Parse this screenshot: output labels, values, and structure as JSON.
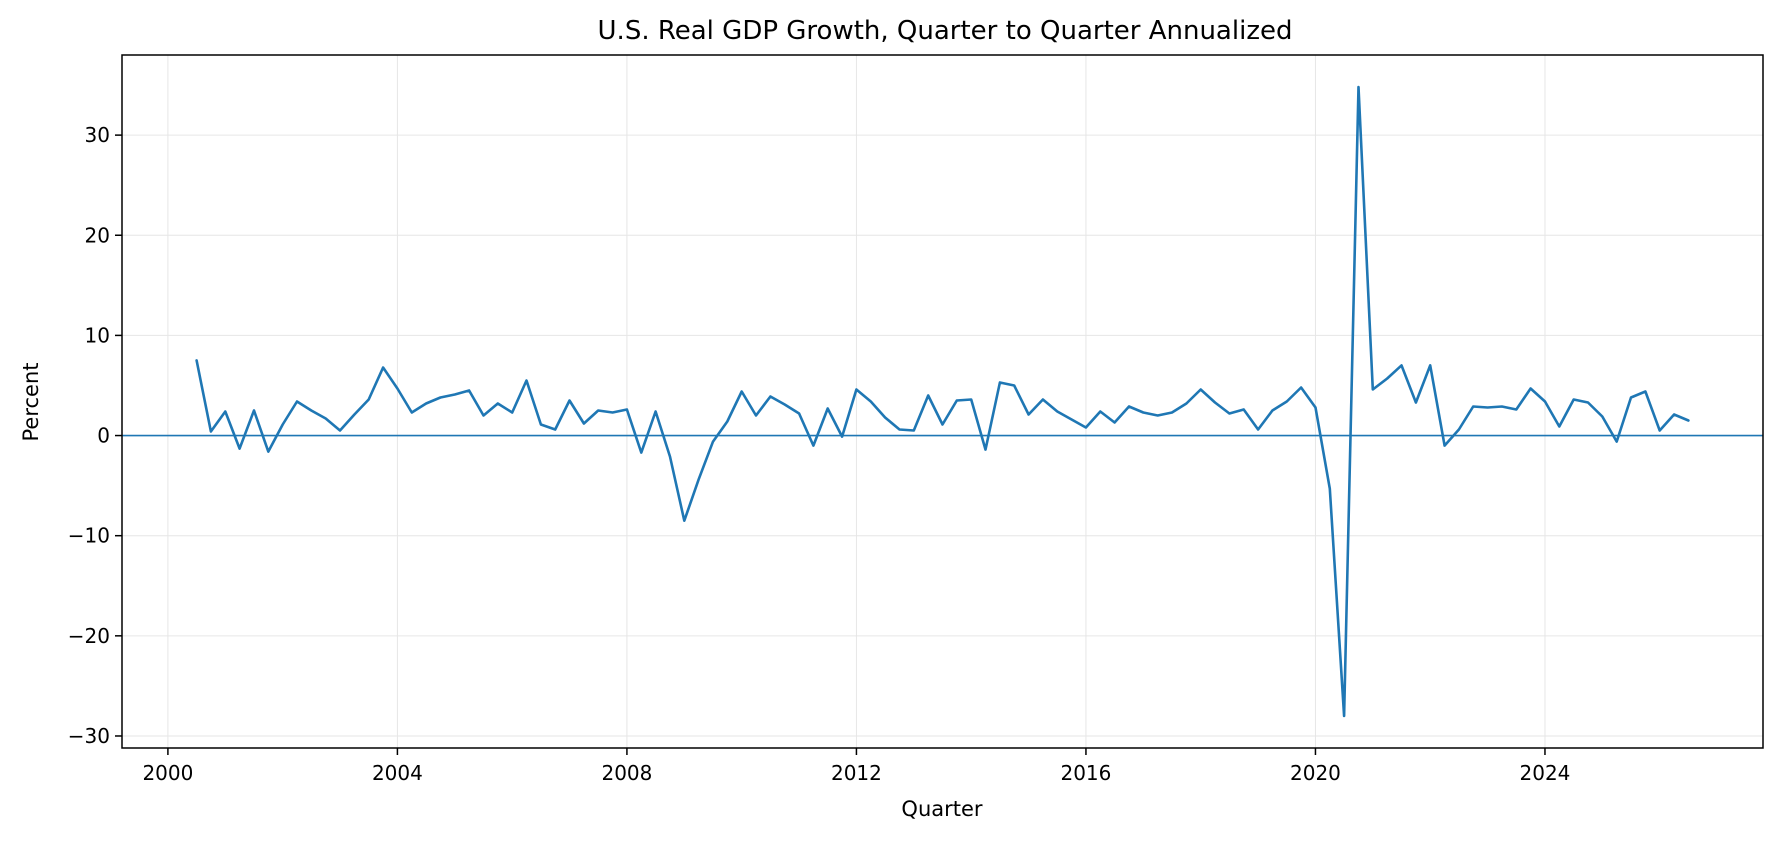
{
  "chart_data": {
    "type": "line",
    "title": "U.S. Real GDP Growth, Quarter to Quarter Annualized",
    "xlabel": "Quarter",
    "ylabel": "Percent",
    "xlim": [
      1999.2,
      2027.8
    ],
    "ylim": [
      -31.2,
      38.0
    ],
    "x_ticks": [
      2000,
      2004,
      2008,
      2012,
      2016,
      2020,
      2024
    ],
    "x_tick_labels": [
      "2000",
      "2004",
      "2008",
      "2012",
      "2016",
      "2020",
      "2024"
    ],
    "y_ticks": [
      -30,
      -20,
      -10,
      0,
      10,
      20,
      30
    ],
    "y_tick_labels": [
      "−30",
      "−20",
      "−10",
      "0",
      "10",
      "20",
      "30"
    ],
    "grid": true,
    "legend": "none",
    "reference_line": {
      "y": 0,
      "color": "#1f77b4"
    },
    "colors": {
      "line": "#1f77b4",
      "grid": "#e6e6e6",
      "axes": "#000000"
    },
    "series": [
      {
        "x": [
          2000.5,
          2000.75,
          2001.0,
          2001.25,
          2001.5,
          2001.75,
          2002.0,
          2002.25,
          2002.5,
          2002.75,
          2003.0,
          2003.25,
          2003.5,
          2003.75,
          2004.0,
          2004.25,
          2004.5,
          2004.75,
          2005.0,
          2005.25,
          2005.5,
          2005.75,
          2006.0,
          2006.25,
          2006.5,
          2006.75,
          2007.0,
          2007.25,
          2007.5,
          2007.75,
          2008.0,
          2008.25,
          2008.5,
          2008.75,
          2009.0,
          2009.25,
          2009.5,
          2009.75,
          2010.0,
          2010.25,
          2010.5,
          2010.75,
          2011.0,
          2011.25,
          2011.5,
          2011.75,
          2012.0,
          2012.25,
          2012.5,
          2012.75,
          2013.0,
          2013.25,
          2013.5,
          2013.75,
          2014.0,
          2014.25,
          2014.5,
          2014.75,
          2015.0,
          2015.25,
          2015.5,
          2015.75,
          2016.0,
          2016.25,
          2016.5,
          2016.75,
          2017.0,
          2017.25,
          2017.5,
          2017.75,
          2018.0,
          2018.25,
          2018.5,
          2018.75,
          2019.0,
          2019.25,
          2019.5,
          2019.75,
          2020.0,
          2020.25,
          2020.5,
          2020.75,
          2021.0,
          2021.25,
          2021.5,
          2021.75,
          2022.0,
          2022.25,
          2022.5,
          2022.75,
          2023.0,
          2023.25,
          2023.5,
          2023.75,
          2024.0,
          2024.25,
          2024.5,
          2024.75,
          2025.0,
          2025.25,
          2025.5,
          2025.75,
          2026.0,
          2026.25,
          2026.5
        ],
        "y": [
          7.5,
          0.4,
          2.4,
          -1.3,
          2.5,
          -1.6,
          1.1,
          3.4,
          2.5,
          1.7,
          0.5,
          2.1,
          3.6,
          6.8,
          4.7,
          2.3,
          3.2,
          3.8,
          4.1,
          4.5,
          2.0,
          3.2,
          2.3,
          5.5,
          1.1,
          0.6,
          3.5,
          1.2,
          2.5,
          2.3,
          2.6,
          -1.7,
          2.4,
          -2.1,
          -8.5,
          -4.4,
          -0.6,
          1.4,
          4.4,
          2.0,
          3.9,
          3.1,
          2.2,
          -1.0,
          2.7,
          -0.1,
          4.6,
          3.4,
          1.8,
          0.6,
          0.5,
          4.0,
          1.1,
          3.5,
          3.6,
          -1.4,
          5.3,
          5.0,
          2.1,
          3.6,
          2.4,
          1.6,
          0.8,
          2.4,
          1.3,
          2.9,
          2.3,
          2.0,
          2.3,
          3.2,
          4.6,
          3.3,
          2.2,
          2.6,
          0.6,
          2.5,
          3.4,
          4.8,
          2.8,
          -5.3,
          -28.0,
          34.8,
          4.6,
          5.7,
          7.0,
          3.3,
          7.0,
          -1.0,
          0.6,
          2.9,
          2.8,
          2.9,
          2.6,
          4.7,
          3.4,
          0.9,
          3.6,
          3.3,
          1.9,
          -0.6,
          3.8,
          4.4,
          0.5,
          2.1,
          1.5
        ]
      }
    ]
  }
}
